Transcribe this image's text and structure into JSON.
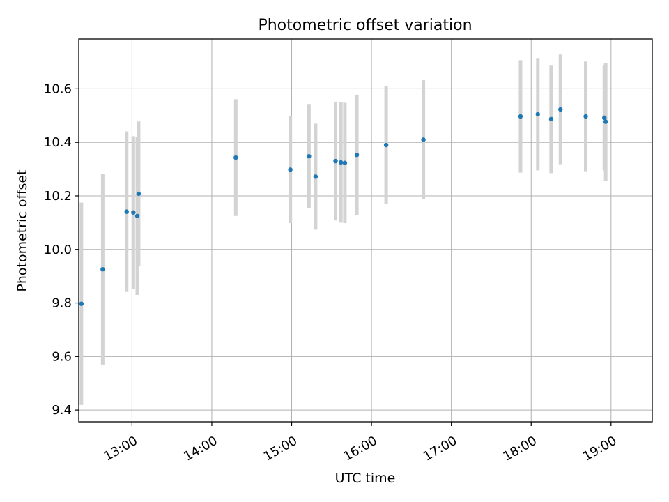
{
  "chart_data": {
    "type": "scatter",
    "title": "Photometric offset variation",
    "xlabel": "UTC time",
    "ylabel": "Photometric offset",
    "x_ticks": [
      "13:00",
      "14:00",
      "15:00",
      "16:00",
      "17:00",
      "18:00",
      "19:00"
    ],
    "y_ticks": [
      "9.4",
      "9.6",
      "9.8",
      "10.0",
      "10.2",
      "10.4",
      "10.6"
    ],
    "xlim": [
      "12:20",
      "19:31"
    ],
    "ylim": [
      9.356,
      10.786
    ],
    "grid": true,
    "colors": {
      "point": "#1f77b4",
      "errorbar": "#d3d3d3",
      "grid": "#b0b0b0"
    },
    "points": [
      {
        "time": "12:22",
        "y": 9.797,
        "err": 0.378
      },
      {
        "time": "12:38",
        "y": 9.926,
        "err": 0.356
      },
      {
        "time": "12:56",
        "y": 10.141,
        "err": 0.3
      },
      {
        "time": "13:01",
        "y": 10.138,
        "err": 0.285
      },
      {
        "time": "13:04",
        "y": 10.125,
        "err": 0.295
      },
      {
        "time": "13:05",
        "y": 10.208,
        "err": 0.27
      },
      {
        "time": "14:18",
        "y": 10.343,
        "err": 0.218
      },
      {
        "time": "14:59",
        "y": 10.298,
        "err": 0.2
      },
      {
        "time": "15:13",
        "y": 10.348,
        "err": 0.195
      },
      {
        "time": "15:18",
        "y": 10.272,
        "err": 0.198
      },
      {
        "time": "15:33",
        "y": 10.33,
        "err": 0.222
      },
      {
        "time": "15:37",
        "y": 10.325,
        "err": 0.225
      },
      {
        "time": "15:40",
        "y": 10.323,
        "err": 0.225
      },
      {
        "time": "15:49",
        "y": 10.353,
        "err": 0.225
      },
      {
        "time": "16:11",
        "y": 10.39,
        "err": 0.22
      },
      {
        "time": "16:39",
        "y": 10.41,
        "err": 0.222
      },
      {
        "time": "17:52",
        "y": 10.497,
        "err": 0.21
      },
      {
        "time": "18:05",
        "y": 10.505,
        "err": 0.21
      },
      {
        "time": "18:15",
        "y": 10.487,
        "err": 0.202
      },
      {
        "time": "18:22",
        "y": 10.523,
        "err": 0.205
      },
      {
        "time": "18:41",
        "y": 10.497,
        "err": 0.205
      },
      {
        "time": "18:55",
        "y": 10.492,
        "err": 0.197
      },
      {
        "time": "18:56",
        "y": 10.477,
        "err": 0.22
      }
    ]
  }
}
